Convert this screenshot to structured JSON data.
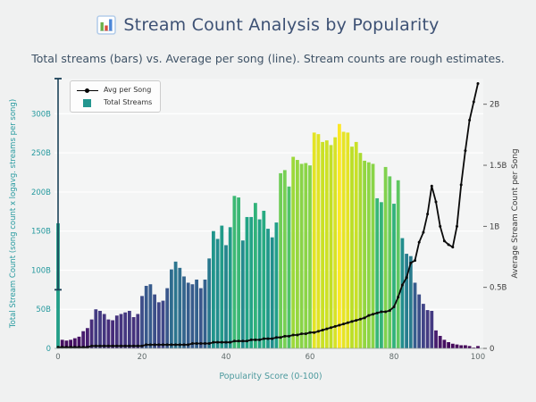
{
  "header": {
    "title": "Stream Count Analysis by Popularity",
    "icon": "bar-chart-emoji-icon",
    "subtitle": "Total streams (bars) vs. Average per song (line). Stream counts are rough estimates."
  },
  "legend": {
    "items": [
      {
        "label": "Avg per Song",
        "marker": "line-with-dot",
        "color": "#000000"
      },
      {
        "label": "Total Streams",
        "marker": "filled-square",
        "color": "#23968f"
      }
    ]
  },
  "chart_data": {
    "type": "bar+line combo, dual y-axes",
    "title": "Stream Count Analysis by Popularity",
    "subtitle": "Total streams (bars) vs. Average per song (line). Stream counts are rough estimates.",
    "xlabel": "Popularity Score (0-100)",
    "ylabel_left": "Total Stream Count (song count x logavg. streams per song)",
    "ylabel_right": "Average Stream Count per Song",
    "x_ticks": [
      0,
      20,
      40,
      60,
      80,
      100
    ],
    "y_left_ticks": [
      "0",
      "50B",
      "100B",
      "150B",
      "200B",
      "250B",
      "300B"
    ],
    "y_left_tick_values": [
      0,
      50,
      100,
      150,
      200,
      250,
      300
    ],
    "y_right_ticks": [
      "0",
      "0.5B",
      "1B",
      "1.5B",
      "2B"
    ],
    "y_right_tick_values": [
      0,
      0.5,
      1,
      1.5,
      2
    ],
    "y_left_range_B": [
      0,
      345
    ],
    "y_right_range_B": [
      0,
      2.21
    ],
    "x_range": [
      0,
      100
    ],
    "grid": "horizontal white gridlines at left-axis ticks",
    "legend_position": "upper-left inside plot",
    "colormap": "viridis, bar color mapped to bar height (max ~287B)",
    "bar0_whisker_B": {
      "x": 0,
      "low": 75,
      "high": 345
    },
    "x": [
      0,
      1,
      2,
      3,
      4,
      5,
      6,
      7,
      8,
      9,
      10,
      11,
      12,
      13,
      14,
      15,
      16,
      17,
      18,
      19,
      20,
      21,
      22,
      23,
      24,
      25,
      26,
      27,
      28,
      29,
      30,
      31,
      32,
      33,
      34,
      35,
      36,
      37,
      38,
      39,
      40,
      41,
      42,
      43,
      44,
      45,
      46,
      47,
      48,
      49,
      50,
      51,
      52,
      53,
      54,
      55,
      56,
      57,
      58,
      59,
      60,
      61,
      62,
      63,
      64,
      65,
      66,
      67,
      68,
      69,
      70,
      71,
      72,
      73,
      74,
      75,
      76,
      77,
      78,
      79,
      80,
      81,
      82,
      83,
      84,
      85,
      86,
      87,
      88,
      89,
      90,
      91,
      92,
      93,
      94,
      95,
      96,
      97,
      98,
      99,
      100
    ],
    "series": [
      {
        "name": "Total Streams",
        "axis": "left",
        "units": "billions of streams",
        "values": [
          160,
          11,
          10,
          11,
          13,
          15,
          22,
          26,
          37,
          50,
          48,
          44,
          37,
          36,
          42,
          44,
          46,
          48,
          40,
          44,
          67,
          80,
          82,
          69,
          59,
          61,
          77,
          101,
          111,
          103,
          92,
          84,
          82,
          88,
          77,
          88,
          115,
          150,
          140,
          157,
          132,
          155,
          195,
          193,
          138,
          168,
          168,
          186,
          165,
          176,
          153,
          142,
          161,
          224,
          228,
          207,
          245,
          241,
          236,
          237,
          234,
          276,
          274,
          264,
          266,
          260,
          270,
          287,
          277,
          276,
          258,
          264,
          250,
          240,
          238,
          236,
          192,
          187,
          232,
          220,
          185,
          215,
          141,
          121,
          118,
          84,
          69,
          57,
          49,
          48,
          23,
          16,
          11,
          8,
          6,
          5,
          4,
          4,
          3,
          1,
          3
        ]
      },
      {
        "name": "Avg per Song",
        "axis": "right",
        "units": "billions of streams per song",
        "values": [
          0.01,
          0.01,
          0.01,
          0.01,
          0.01,
          0.01,
          0.01,
          0.01,
          0.02,
          0.02,
          0.02,
          0.02,
          0.02,
          0.02,
          0.02,
          0.02,
          0.02,
          0.02,
          0.02,
          0.02,
          0.02,
          0.03,
          0.03,
          0.03,
          0.03,
          0.03,
          0.03,
          0.03,
          0.03,
          0.03,
          0.03,
          0.03,
          0.04,
          0.04,
          0.04,
          0.04,
          0.04,
          0.05,
          0.05,
          0.05,
          0.05,
          0.05,
          0.06,
          0.06,
          0.06,
          0.06,
          0.07,
          0.07,
          0.07,
          0.08,
          0.08,
          0.08,
          0.09,
          0.09,
          0.1,
          0.1,
          0.11,
          0.11,
          0.12,
          0.12,
          0.13,
          0.13,
          0.14,
          0.15,
          0.16,
          0.17,
          0.18,
          0.19,
          0.2,
          0.21,
          0.22,
          0.23,
          0.24,
          0.25,
          0.27,
          0.28,
          0.29,
          0.3,
          0.3,
          0.31,
          0.34,
          0.42,
          0.52,
          0.58,
          0.7,
          0.72,
          0.87,
          0.95,
          1.1,
          1.33,
          1.2,
          1.0,
          0.88,
          0.85,
          0.83,
          1.0,
          1.34,
          1.62,
          1.87,
          2.02,
          2.17
        ]
      }
    ],
    "colors": {
      "line": "#0a0a0a",
      "left_axis_text": "#279a9f",
      "right_axis_text": "#3c3c3c",
      "x_tick_text": "#5f6a6a",
      "xlabel_text": "#4d9a9e",
      "whisker": "#1c4258",
      "plot_bg": "#f4f5f5",
      "grid": "#ffffff"
    }
  }
}
